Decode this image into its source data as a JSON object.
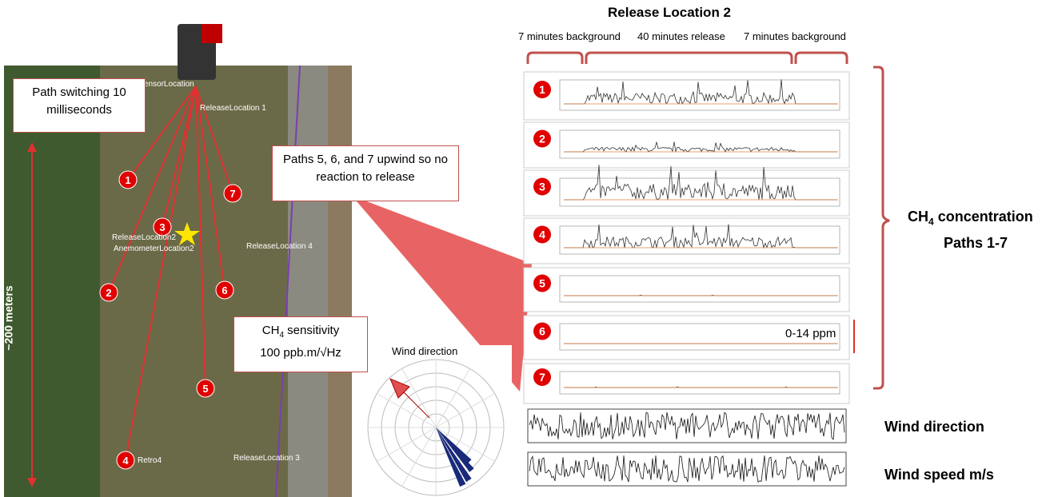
{
  "title": "Release Location 2",
  "timeline": [
    "7 minutes background",
    "40 minutes release",
    "7 minutes background"
  ],
  "path_numbers": [
    "1",
    "2",
    "3",
    "4",
    "5",
    "6",
    "7"
  ],
  "range_label": "0-14 ppm",
  "concentration_label": {
    "chem": "CH",
    "sub": "4",
    "text": " concentration",
    "paths": "Paths 1-7"
  },
  "wind_labels": [
    "Wind direction",
    "Wind speed m/s"
  ],
  "map": {
    "switching": "Path switching 10 milliseconds",
    "upwind": "Paths 5, 6, and 7 upwind so no reaction to release",
    "sensitivity": {
      "chem": "CH",
      "sub": "4",
      "text": " sensitivity",
      "value": "100 ppb.m/√Hz"
    },
    "distance": "~200 meters",
    "polar_title": "Wind direction",
    "places": [
      "SensorLocation",
      "ReleaseLocation 1",
      "ReleaseLocation 4",
      "ReleaseLocation 3",
      "ReleaseLocation2",
      "AnemometerLocation2",
      "Retro4"
    ],
    "markers": [
      "1",
      "7",
      "3",
      "2",
      "6",
      "5",
      "4"
    ]
  }
}
